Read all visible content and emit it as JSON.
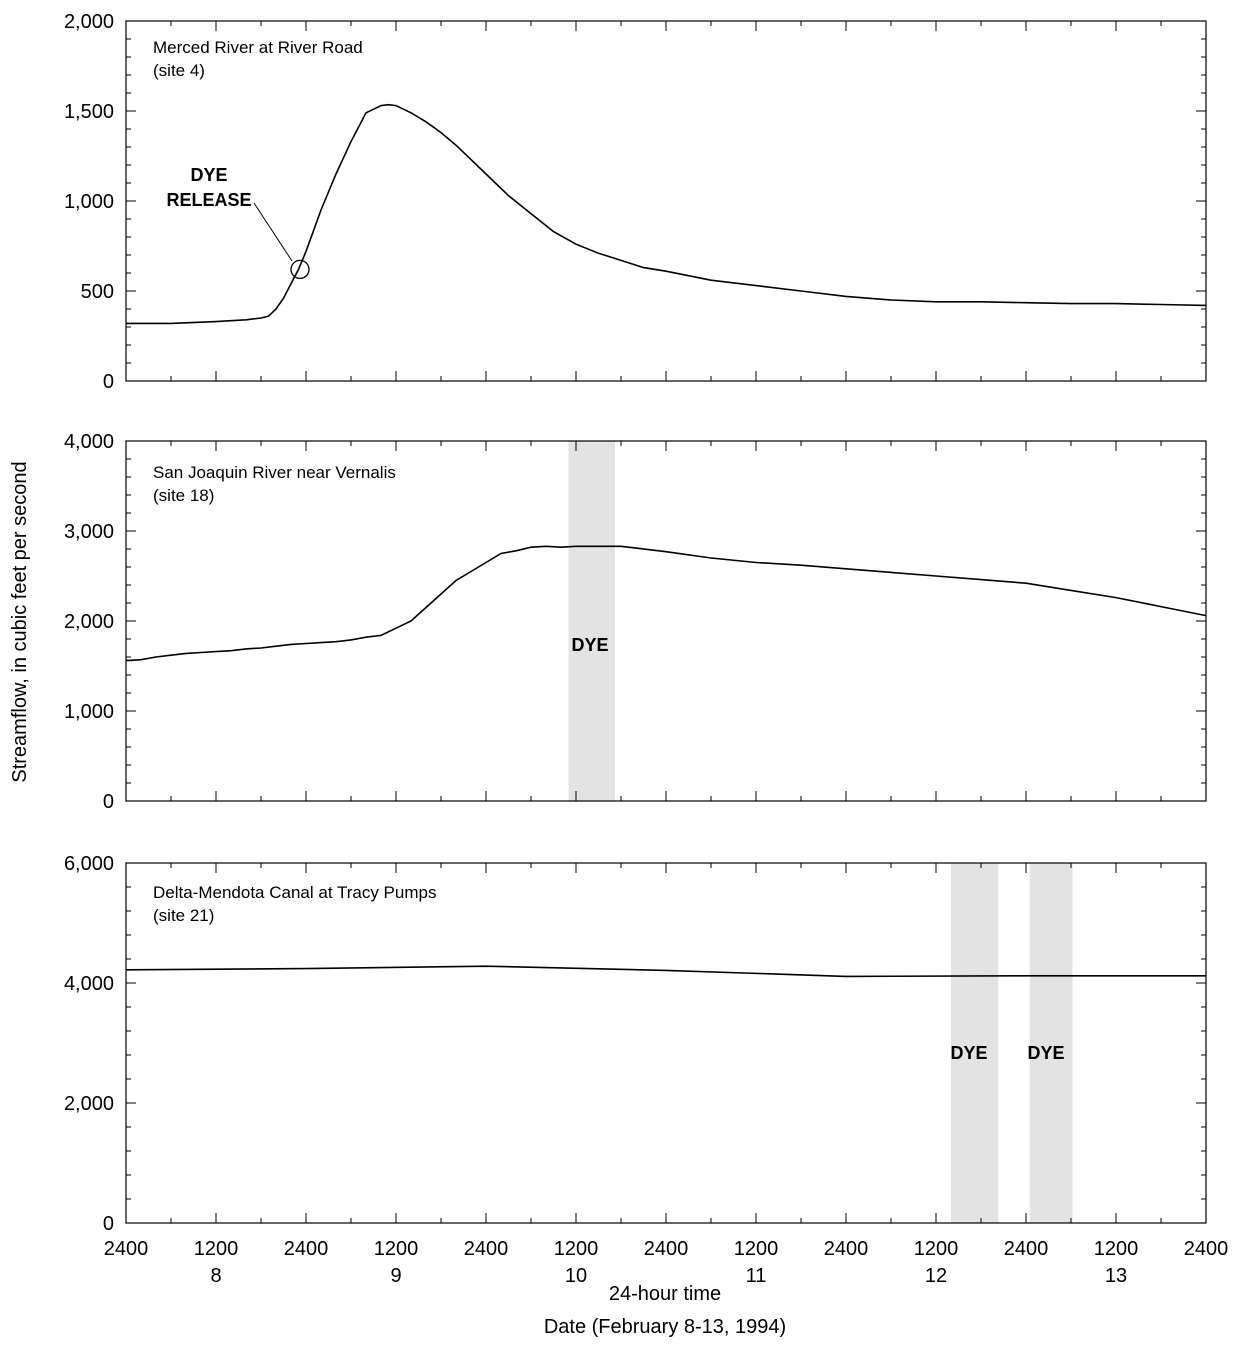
{
  "chart_data": {
    "type": "line",
    "ylabel": "Streamflow, in cubic feet per second",
    "xlabel_line1": "24-hour time",
    "xlabel_line2": "Date (February 8-13, 1994)",
    "x_unit": "hours since 2400 on February 7, 1994",
    "xlim": [
      0,
      144
    ],
    "x_tick_labels": [
      {
        "time": "2400",
        "date": ""
      },
      {
        "time": "1200",
        "date": "8"
      },
      {
        "time": "2400",
        "date": ""
      },
      {
        "time": "1200",
        "date": "9"
      },
      {
        "time": "2400",
        "date": ""
      },
      {
        "time": "1200",
        "date": "10"
      },
      {
        "time": "2400",
        "date": ""
      },
      {
        "time": "1200",
        "date": "11"
      },
      {
        "time": "2400",
        "date": ""
      },
      {
        "time": "1200",
        "date": "12"
      },
      {
        "time": "2400",
        "date": ""
      },
      {
        "time": "1200",
        "date": "13"
      },
      {
        "time": "2400",
        "date": ""
      }
    ],
    "colors": {
      "line": "#000000",
      "dye_band": "#e3e3e3"
    },
    "panels": [
      {
        "title": [
          "Merced River at River Road",
          "(site 4)"
        ],
        "ylim": [
          0,
          2000
        ],
        "yticks": [
          0,
          500,
          1000,
          1500,
          2000
        ],
        "ytick_labels": [
          "0",
          "500",
          "1,000",
          "1,500",
          "2,000"
        ],
        "x": [
          0,
          6,
          12,
          16,
          18,
          19,
          20,
          21,
          22,
          23,
          24,
          26,
          28,
          30,
          32,
          34,
          35,
          36,
          37,
          38,
          40,
          42,
          44,
          46,
          48,
          51,
          54,
          57,
          60,
          63,
          66,
          69,
          72,
          78,
          84,
          90,
          96,
          102,
          108,
          114,
          120,
          126,
          132,
          138,
          144
        ],
        "values": [
          320,
          320,
          330,
          340,
          350,
          360,
          400,
          460,
          540,
          620,
          720,
          950,
          1150,
          1330,
          1490,
          1530,
          1535,
          1530,
          1510,
          1490,
          1440,
          1380,
          1310,
          1230,
          1150,
          1030,
          930,
          830,
          760,
          710,
          670,
          630,
          610,
          560,
          530,
          500,
          470,
          450,
          440,
          440,
          435,
          430,
          430,
          425,
          420
        ],
        "annotations": [
          {
            "type": "circle",
            "x": 23.2,
            "y": 620
          },
          {
            "type": "label",
            "lines": [
              "DYE",
              "RELEASE"
            ]
          }
        ],
        "dye_bands": []
      },
      {
        "title": [
          "San Joaquin River near Vernalis",
          "(site 18)"
        ],
        "ylim": [
          0,
          4000
        ],
        "yticks": [
          0,
          1000,
          2000,
          3000,
          4000
        ],
        "ytick_labels": [
          "0",
          "1,000",
          "2,000",
          "3,000",
          "4,000"
        ],
        "x": [
          0,
          2,
          4,
          6,
          8,
          10,
          12,
          14,
          16,
          18,
          20,
          22,
          24,
          26,
          28,
          30,
          32,
          34,
          36,
          38,
          40,
          42,
          44,
          46,
          48,
          50,
          52,
          54,
          56,
          58,
          60,
          62,
          64,
          66,
          68,
          72,
          78,
          84,
          90,
          96,
          102,
          108,
          114,
          120,
          126,
          132,
          138,
          144
        ],
        "values": [
          1560,
          1570,
          1600,
          1620,
          1640,
          1650,
          1660,
          1670,
          1690,
          1700,
          1720,
          1740,
          1750,
          1760,
          1770,
          1790,
          1820,
          1840,
          1920,
          2000,
          2150,
          2300,
          2450,
          2550,
          2650,
          2750,
          2780,
          2820,
          2830,
          2820,
          2830,
          2830,
          2830,
          2830,
          2810,
          2770,
          2700,
          2650,
          2620,
          2580,
          2540,
          2500,
          2460,
          2420,
          2340,
          2260,
          2160,
          2060
        ],
        "annotations": [
          {
            "type": "label",
            "lines": [
              "DYE"
            ]
          }
        ],
        "dye_bands": [
          [
            59,
            65.2
          ]
        ]
      },
      {
        "title": [
          "Delta-Mendota Canal at Tracy Pumps",
          "(site 21)"
        ],
        "ylim": [
          0,
          6000
        ],
        "yticks": [
          0,
          2000,
          4000,
          6000
        ],
        "ytick_labels": [
          "0",
          "2,000",
          "4,000",
          "6,000"
        ],
        "x": [
          0,
          24,
          48,
          72,
          96,
          120,
          144
        ],
        "values": [
          4220,
          4240,
          4280,
          4210,
          4110,
          4120,
          4120
        ],
        "annotations": [
          {
            "type": "label",
            "lines": [
              "DYE"
            ]
          },
          {
            "type": "label",
            "lines": [
              "DYE"
            ]
          }
        ],
        "dye_bands": [
          [
            110,
            116.3
          ],
          [
            120.5,
            126.2
          ]
        ]
      }
    ]
  }
}
